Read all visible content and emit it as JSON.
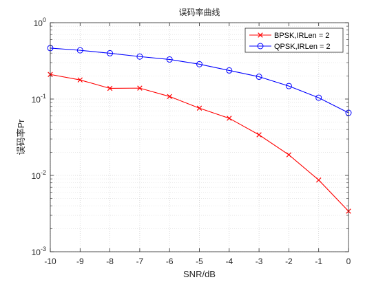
{
  "chart_data": {
    "type": "line",
    "title": "误码率曲线",
    "xlabel": "SNR/dB",
    "ylabel": "误码率Pr",
    "xlim": [
      -10,
      0
    ],
    "ylim": [
      0.001,
      1
    ],
    "y_scale": "log",
    "grid": true,
    "minor_grid": true,
    "legend_position": "top-right",
    "x_ticks": [
      -10,
      -9,
      -8,
      -7,
      -6,
      -5,
      -4,
      -3,
      -2,
      -1,
      0
    ],
    "x_tick_labels": [
      "-10",
      "-9",
      "-8",
      "-7",
      "-6",
      "-5",
      "-4",
      "-3",
      "-2",
      "-1",
      "0"
    ],
    "y_ticks": [
      {
        "value": 1,
        "base": "10",
        "exp": "0"
      },
      {
        "value": 0.1,
        "base": "10",
        "exp": "-1"
      },
      {
        "value": 0.01,
        "base": "10",
        "exp": "-2"
      },
      {
        "value": 0.001,
        "base": "10",
        "exp": "-3"
      }
    ],
    "x": [
      -10,
      -9,
      -8,
      -7,
      -6,
      -5,
      -4,
      -3,
      -2,
      -1,
      0
    ],
    "series": [
      {
        "name": "BPSK,IRLen = 2",
        "color": "#ff0000",
        "marker": "x",
        "values": [
          0.21,
          0.178,
          0.138,
          0.139,
          0.108,
          0.076,
          0.056,
          0.034,
          0.0186,
          0.0087,
          0.0034
        ]
      },
      {
        "name": "QPSK,IRLen = 2",
        "color": "#0000ff",
        "marker": "o",
        "values": [
          0.465,
          0.435,
          0.398,
          0.36,
          0.33,
          0.286,
          0.237,
          0.196,
          0.148,
          0.104,
          0.066
        ]
      }
    ]
  }
}
